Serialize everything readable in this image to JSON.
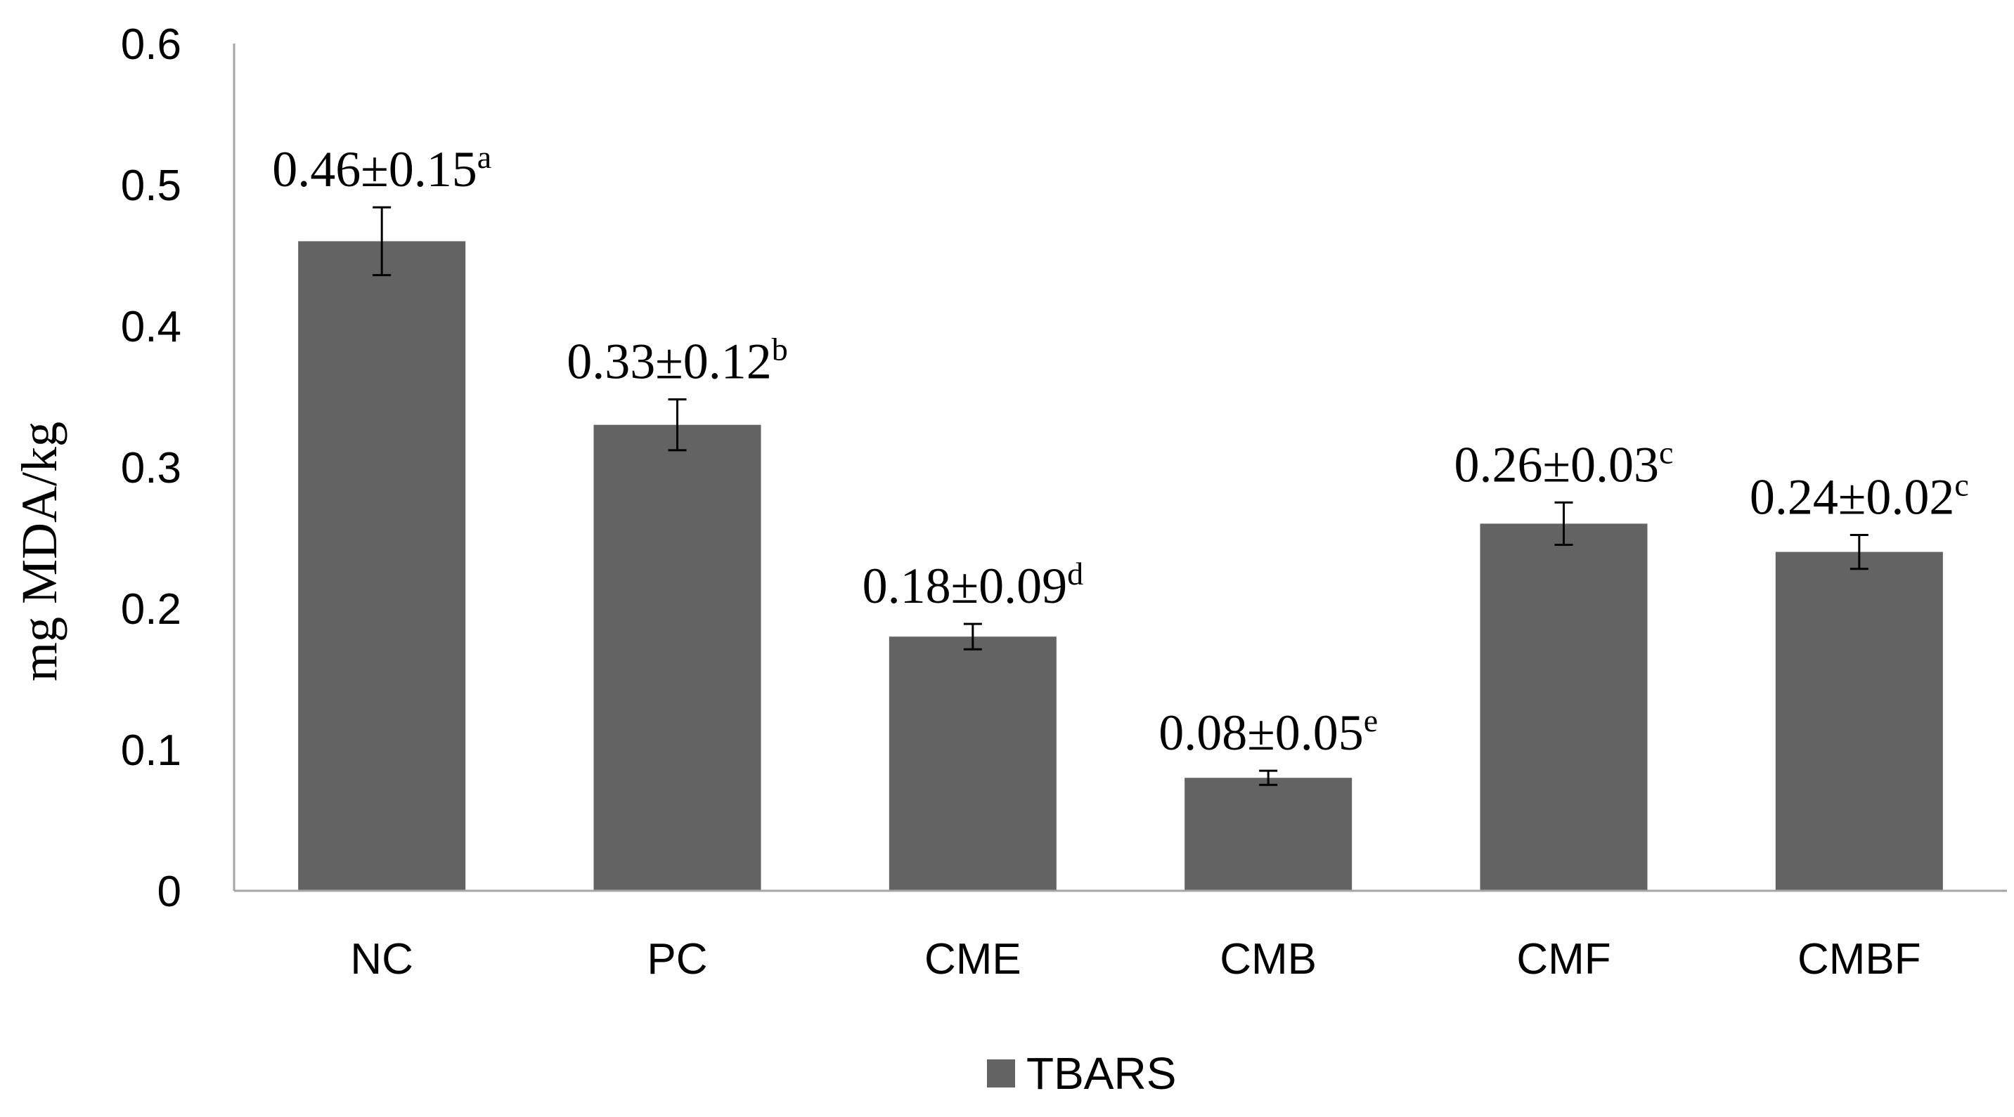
{
  "chart_data": {
    "type": "bar",
    "categories": [
      "NC",
      "PC",
      "CME",
      "CMB",
      "CMF",
      "CMBF"
    ],
    "series": [
      {
        "name": "TBARS",
        "values": [
          0.46,
          0.33,
          0.18,
          0.08,
          0.26,
          0.24
        ],
        "error_plus_minus_drawn": [
          0.024,
          0.018,
          0.009,
          0.005,
          0.015,
          0.012
        ],
        "data_labels": [
          {
            "text": "0.46±0.15",
            "superscript": "a"
          },
          {
            "text": "0.33±0.12",
            "superscript": "b"
          },
          {
            "text": "0.18±0.09",
            "superscript": "d"
          },
          {
            "text": "0.08±0.05",
            "superscript": "e"
          },
          {
            "text": "0.26±0.03",
            "superscript": "c"
          },
          {
            "text": "0.24±0.02",
            "superscript": "c"
          }
        ]
      }
    ],
    "title": "",
    "xlabel": "",
    "ylabel": "mg MDA/kg",
    "ylim": [
      0,
      0.6
    ],
    "yticks": [
      "0",
      "0.1",
      "0.2",
      "0.3",
      "0.4",
      "0.5",
      "0.6"
    ],
    "grid": false,
    "legend_position": "bottom-center",
    "colors": {
      "bar": "#636363",
      "axis": "#a6a6a6",
      "error_bar": "#000000",
      "text": "#000000"
    }
  }
}
